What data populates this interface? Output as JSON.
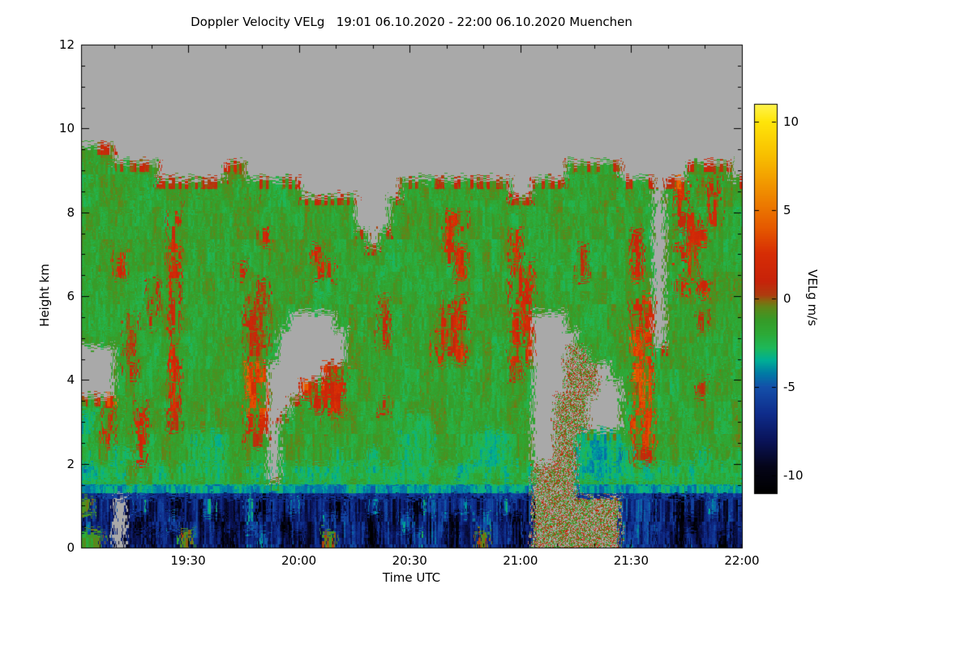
{
  "title": "Doppler Velocity VELg   19:01 06.10.2020 - 22:00 06.10.2020 Muenchen",
  "chart_data": {
    "type": "heatmap",
    "title": "Doppler Velocity VELg   19:01 06.10.2020 - 22:00 06.10.2020 Muenchen",
    "station": "Muenchen",
    "date": "06.10.2020",
    "x_start": "19:01",
    "x_end": "22:00",
    "xlabel": "Time UTC",
    "ylabel": "Height km",
    "colorbar_label": "VELg m/s",
    "ylim": [
      0,
      12
    ],
    "x_range_minutes": [
      0,
      179
    ],
    "y_ticks": [
      0,
      2,
      4,
      6,
      8,
      10,
      12
    ],
    "x_ticks": [
      {
        "label": "19:30",
        "min": 29
      },
      {
        "label": "20:00",
        "min": 59
      },
      {
        "label": "20:30",
        "min": 89
      },
      {
        "label": "21:00",
        "min": 119
      },
      {
        "label": "21:30",
        "min": 149
      },
      {
        "label": "22:00",
        "min": 179
      }
    ],
    "value_range": [
      -11,
      11
    ],
    "colorbar_ticks": [
      10,
      5,
      0,
      -5,
      -10
    ],
    "no_data_color": "#a9a9a9",
    "colormap_stops": [
      [
        -11,
        0,
        0,
        0
      ],
      [
        -9.5,
        5,
        5,
        25
      ],
      [
        -8,
        10,
        20,
        90
      ],
      [
        -6.5,
        15,
        45,
        140
      ],
      [
        -5,
        20,
        80,
        170
      ],
      [
        -4.2,
        0,
        125,
        165
      ],
      [
        -3.5,
        0,
        175,
        150
      ],
      [
        -2.8,
        30,
        185,
        90
      ],
      [
        -2,
        45,
        170,
        55
      ],
      [
        -1.2,
        55,
        155,
        40
      ],
      [
        -0.5,
        95,
        135,
        25
      ],
      [
        -0.1,
        140,
        100,
        15
      ],
      [
        0.2,
        175,
        60,
        15
      ],
      [
        1,
        200,
        35,
        10
      ],
      [
        2.5,
        215,
        45,
        5
      ],
      [
        4,
        230,
        90,
        0
      ],
      [
        6,
        240,
        140,
        0
      ],
      [
        8,
        248,
        190,
        0
      ],
      [
        10,
        255,
        230,
        10
      ],
      [
        11,
        255,
        245,
        80
      ]
    ],
    "grid": {
      "cols": 60,
      "rows": 30,
      "t0_minutes": 0,
      "t1_minutes": 179,
      "height_top_km": 12,
      "height_bottom_km": 0,
      "value_key": {
        ".": null,
        "G": -1.6,
        "g": -0.9,
        "d": -2.6,
        "T": -3.4,
        "C": -3.8,
        "r": 0.6,
        "R": 1.8,
        "S": 3.2,
        "B": -5.5,
        "N": -7.5,
        "K": -9.5,
        "m": "mixed"
      },
      "rows_top_to_bottom": [
        "............................................................",
        "............................................................",
        "............................................................",
        "............................................................",
        "............................................................",
        "............................................................",
        "GGg.........................................................",
        "GGGGGGg......gg.............................GGGGG......GGgG.",
        "GGGGGGGgggGGGGGGGGGG.........GGGGGGGGGG..GGGGGGGGGGG.GRGgRGG",
        "GGGGGGGGgGGGGGGgGGGGGGGGG...GGGGGGGGGGGgGGGGGGGGGGGG.GRGGRGG",
        "GGGGGGGGRGGGGGGGGGGGGGGGG...GGGGGRRGGGGGGGGGGGGGGGGG.GRRGRGG",
        "GGGGGGGGRGGGGGGGRGGGGGGGGG.GGGGGGRGGGGGRGGGGGGGGGGrG.GGRRGGG",
        "GGGRGGGGRGGGGGGGGGGGGRGGGGGGGGGGGRRGGGGRGGGGGrGGGGRG.GRRGGGG",
        "GGGRGGGGRGGGGGRGGGGGGRRGGGGGGGGGGGRGGGGRRGGGGrGGGGRG.GGRGGGG",
        "GGGGGGrGRGGGGGGGrGGGGGGGGGGGGGGGGGGGGGGRRGGGGGGGGGGG.GRGRGGG",
        "GGGGGGrGRGGGGGGrrGGGGGGGGGGrGGGGGRRGGGGRRGGGGGGGGGRR.GGGGGGG",
        "GGGGrGrGRGGGGGGrrGG....GGGGrGGGGRRRGGGGRR...GGGGGGRR.GGGrGGG",
        "GGGGrGGGRGGGGGGrrG......GGGrGGGGRRRGGGGRR....GGGGGSS.GGGGGGG",
        "...GrGGGRGGGGGGrrG......GGGGGGGGRRRGGGGRR...mmGGGGSSGGGGGGGG",
        "...GrGGGRGGGGGGSS.....rrGGGGGGGGGGGGGGGrG...mmm.GGSSGGGGGGGG",
        "...GGGGGRGGGGGGSS...RRRRGGGGGGGGGGGGGGGGG...mmm..GSSGGGGrGGG",
        "GGRGGRGGRGGGGGGSS..GGRRRGGGrGGGGGGGGGGGGG..mmm...GSSGGGGGGGG",
        "dGRGGRGGrGGGGGGRR.GGGGrGGGGGGdddGGGGGGGGG..mmm...GSSGGGGGGGG",
        "dGRGGRGGGGdddGGrr.GGGGGGGGGGGdddGGGGdddGG..mmTTTTGSSGGGGGGGG",
        "dGGddRGGGGdddGGGG.GGGGGdGGdGGdddGGGGdddGG..mmTTTTdrrGGGGdGGd",
        "TdddGdGdGddddGGdd.dddddddddddddddddddddddmmmmTTTTddddddddddd",
        "CCCCCCCCCCCCCCCCCCCCCCCCCCCCCCCCCCCCCCCCCmmmmCCCCCCCCCCCCCCC",
        "gNN.NBNNKNNBNNNBKNNBNNNKNNBNNNKBNNBNNNBNNmmmmmmmmBBBNNKNNBNN",
        "NNN.NKNNBNNNKNNBNNKNNNBNNNKNNBNNNKNNBNNKNmmmmmmmmBBBNNKKNNNN",
        "ggN.NNKNNgNNNKNNBNNKNNgNNNKNNNBNNKNNgNNKNmmmmmmmmBBBNNKNNNKN"
      ]
    }
  }
}
